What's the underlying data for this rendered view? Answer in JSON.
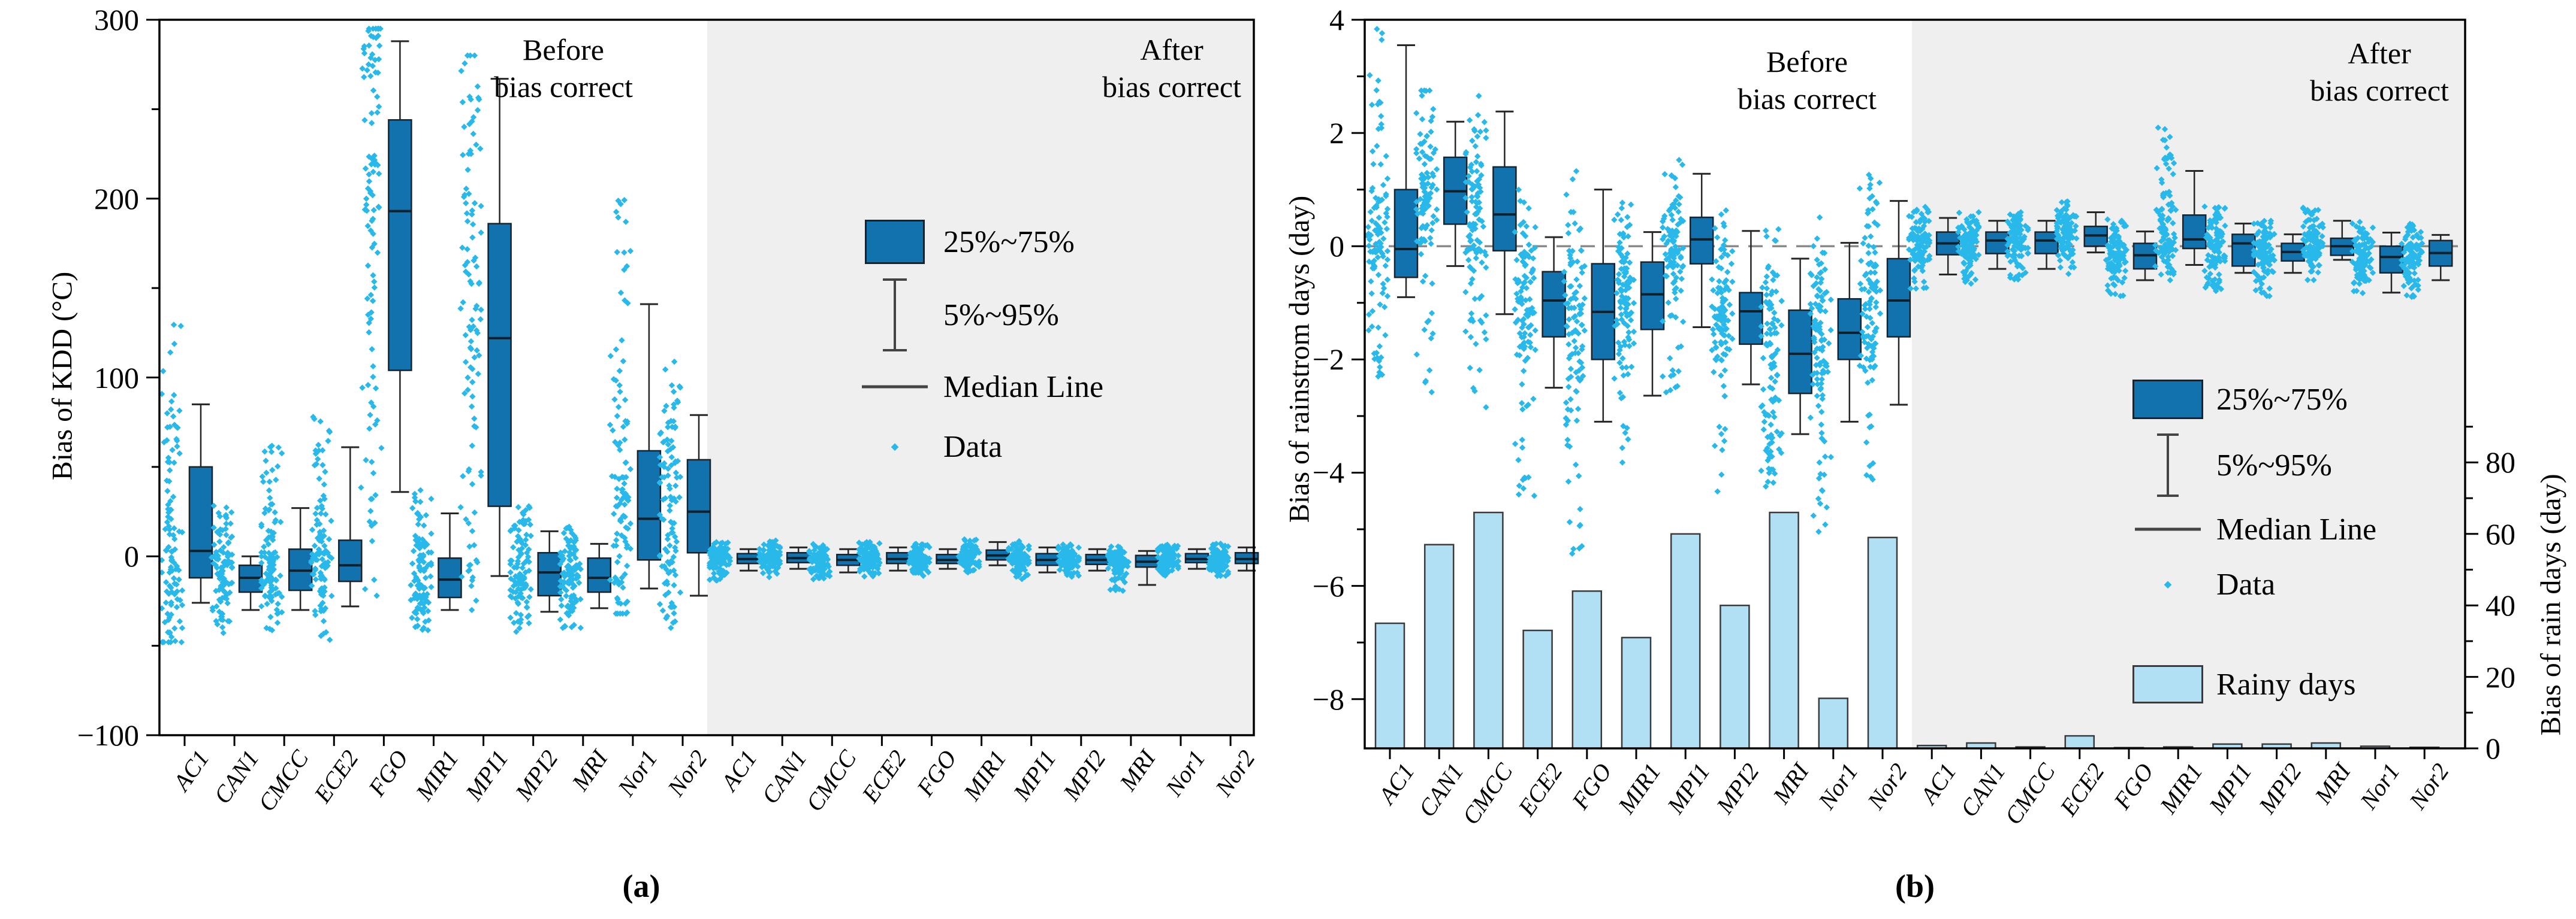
{
  "figure": {
    "caption_a": "(a)",
    "caption_b": "(b)",
    "colors": {
      "box_fill": "#1272ad",
      "box_edge": "#16242f",
      "median": "#10202b",
      "whisker": "#262626",
      "scatter": "#29b8ea",
      "bar_fill": "#b1e0f4",
      "bar_edge": "#3a3a3a",
      "shaded_region": "#efefef",
      "zero_dash": "#8a8a8a",
      "axis": "#000000"
    }
  },
  "chart_data": [
    {
      "panel": "a",
      "type": "box-scatter",
      "y_left_label": "Bias of KDD (°C)",
      "ylim": [
        -100,
        300
      ],
      "yticks": [
        {
          "v": 300,
          "label": "300"
        },
        {
          "v": 200,
          "label": "200"
        },
        {
          "v": 100,
          "label": "100"
        },
        {
          "v": 0,
          "label": "0"
        },
        {
          "v": -100,
          "label": "−100"
        }
      ],
      "yticks_minor": [
        250,
        150,
        50,
        -50
      ],
      "categories": [
        "AC1",
        "CAN1",
        "CMCC",
        "ECE2",
        "FGO",
        "MIR1",
        "MPI1",
        "MPI2",
        "MRI",
        "Nor1",
        "Nor2"
      ],
      "group_before": {
        "line1": "Before",
        "line2": "bias correct"
      },
      "group_after": {
        "line1": "After",
        "line2": "bias correct"
      },
      "legend": [
        {
          "swatch": "box",
          "label": "25%~75%"
        },
        {
          "swatch": "whisker",
          "label": "5%~95%"
        },
        {
          "swatch": "line",
          "label": "Median Line"
        },
        {
          "swatch": "dot",
          "label": "Data"
        }
      ],
      "stats_note": "arrays are [whisker5, q25, median, q75, whisker95, scatter_min, scatter_max] in °C",
      "series": {
        "before": [
          [
            -26,
            -12,
            3,
            50,
            85,
            -48,
            135
          ],
          [
            -30,
            -20,
            -12,
            -5,
            0,
            -45,
            30
          ],
          [
            -30,
            -19,
            -8,
            4,
            27,
            -45,
            62
          ],
          [
            -28,
            -14,
            -5,
            9,
            61,
            -50,
            78
          ],
          [
            36,
            104,
            193,
            244,
            288,
            -22,
            295
          ],
          [
            -30,
            -23,
            -13,
            -1,
            24,
            -42,
            40
          ],
          [
            -11,
            28,
            122,
            186,
            267,
            -30,
            280
          ],
          [
            -31,
            -22,
            -9,
            2,
            14,
            -45,
            28
          ],
          [
            -29,
            -20,
            -12,
            -1,
            7,
            -40,
            18
          ],
          [
            -18,
            -2,
            21,
            59,
            141,
            -32,
            205
          ],
          [
            -22,
            2,
            25,
            54,
            79,
            -40,
            112
          ]
        ],
        "after": [
          [
            -8,
            -4,
            -1.5,
            1.5,
            4,
            -14,
            8
          ],
          [
            -7,
            -3.5,
            -1,
            2,
            5,
            -12,
            9
          ],
          [
            -9,
            -5,
            -2,
            1,
            4,
            -13,
            7
          ],
          [
            -8,
            -4,
            -1.5,
            2,
            5,
            -12,
            8
          ],
          [
            -7,
            -4,
            -2,
            1,
            4,
            -11,
            7
          ],
          [
            -5,
            -2,
            0.5,
            3.5,
            8,
            -10,
            12
          ],
          [
            -9,
            -5,
            -2,
            1.5,
            5,
            -14,
            9
          ],
          [
            -8,
            -4.5,
            -2,
            1,
            4,
            -12,
            7
          ],
          [
            -16,
            -6,
            -3,
            0.5,
            3,
            -20,
            6
          ],
          [
            -7,
            -3.5,
            -1.5,
            1.5,
            4,
            -11,
            7
          ],
          [
            -8,
            -4,
            -1.5,
            2,
            5,
            -12,
            8
          ]
        ]
      }
    },
    {
      "panel": "b",
      "type": "box-scatter-bar",
      "y_left_label": "Bias of rainstrom days (day)",
      "y_right_label": "Bias of rain days (day)",
      "ylim": [
        -8.87,
        4
      ],
      "yticks": [
        {
          "v": 4,
          "label": "4"
        },
        {
          "v": 2,
          "label": "2"
        },
        {
          "v": 0,
          "label": "0"
        },
        {
          "v": -2,
          "label": "−2"
        },
        {
          "v": -4,
          "label": "−4"
        },
        {
          "v": -6,
          "label": "−6"
        },
        {
          "v": -8,
          "label": "−8"
        }
      ],
      "yticks_minor": [
        3,
        1,
        -1,
        -3,
        -5,
        -7
      ],
      "y2lim": [
        0,
        102
      ],
      "y2ticks": [
        {
          "v": 80,
          "label": "80"
        },
        {
          "v": 60,
          "label": "60"
        },
        {
          "v": 40,
          "label": "40"
        },
        {
          "v": 20,
          "label": "20"
        },
        {
          "v": 0,
          "label": "0"
        }
      ],
      "y2ticks_minor": [
        90,
        70,
        50,
        30,
        10
      ],
      "zero_line": true,
      "categories": [
        "AC1",
        "CAN1",
        "CMCC",
        "ECE2",
        "FGO",
        "MIR1",
        "MPI1",
        "MPI2",
        "MRI",
        "Nor1",
        "Nor2"
      ],
      "group_before": {
        "line1": "Before",
        "line2": "bias correct"
      },
      "group_after": {
        "line1": "After",
        "line2": "bias correct"
      },
      "legend": [
        {
          "swatch": "box",
          "label": "25%~75%"
        },
        {
          "swatch": "whisker",
          "label": "5%~95%"
        },
        {
          "swatch": "line",
          "label": "Median Line"
        },
        {
          "swatch": "dot",
          "label": "Data"
        },
        {
          "swatch": "rainy",
          "label": "Rainy days"
        }
      ],
      "stats_note": "arrays are [whisker5, q25, median, q75, whisker95, scatter_min, scatter_max] in days",
      "series": {
        "before": [
          [
            -0.9,
            -0.55,
            -0.05,
            1.0,
            3.55,
            -2.3,
            3.9
          ],
          [
            -0.35,
            0.39,
            0.97,
            1.57,
            2.2,
            -2.6,
            2.75
          ],
          [
            -1.2,
            -0.08,
            0.56,
            1.4,
            2.38,
            -3.0,
            2.7
          ],
          [
            -2.5,
            -1.6,
            -0.96,
            -0.45,
            0.16,
            -4.6,
            1.0
          ],
          [
            -3.1,
            -2.0,
            -1.16,
            -0.31,
            1.0,
            -5.9,
            1.5
          ],
          [
            -2.64,
            -1.47,
            -0.85,
            -0.28,
            0.25,
            -3.9,
            0.9
          ],
          [
            -1.43,
            -0.31,
            0.12,
            0.51,
            1.28,
            -2.6,
            1.7
          ],
          [
            -2.44,
            -1.73,
            -1.15,
            -0.82,
            0.27,
            -4.5,
            0.9
          ],
          [
            -3.32,
            -2.6,
            -1.9,
            -1.13,
            -0.22,
            -4.4,
            0.3
          ],
          [
            -3.1,
            -2.0,
            -1.53,
            -0.93,
            0.06,
            -5.2,
            0.6
          ],
          [
            -2.8,
            -1.6,
            -0.96,
            -0.22,
            0.8,
            -4.2,
            1.3
          ]
        ],
        "after": [
          [
            -0.5,
            -0.15,
            0.05,
            0.25,
            0.5,
            -0.8,
            0.7
          ],
          [
            -0.4,
            -0.13,
            0.1,
            0.25,
            0.45,
            -0.7,
            0.6
          ],
          [
            -0.4,
            -0.13,
            0.1,
            0.25,
            0.45,
            -0.6,
            0.6
          ],
          [
            -0.11,
            0.0,
            0.19,
            0.35,
            0.6,
            -0.5,
            0.8
          ],
          [
            -0.6,
            -0.4,
            -0.16,
            0.05,
            0.26,
            -0.9,
            0.5
          ],
          [
            -0.33,
            -0.04,
            0.12,
            0.55,
            1.33,
            -0.6,
            2.1
          ],
          [
            -0.47,
            -0.35,
            0.05,
            0.21,
            0.4,
            -0.8,
            0.7
          ],
          [
            -0.47,
            -0.26,
            -0.1,
            0.05,
            0.21,
            -0.95,
            0.5
          ],
          [
            -0.24,
            -0.16,
            0.0,
            0.14,
            0.45,
            -0.6,
            0.7
          ],
          [
            -0.82,
            -0.47,
            -0.19,
            0.0,
            0.24,
            -1.0,
            0.45
          ],
          [
            -0.6,
            -0.35,
            -0.12,
            0.1,
            0.2,
            -0.9,
            0.4
          ]
        ]
      },
      "bars": {
        "name": "Rainy days",
        "values_before": [
          35,
          57,
          66,
          33,
          44,
          31,
          60,
          40,
          66,
          14,
          59
        ],
        "values_after": [
          0.8,
          1.5,
          0.4,
          3.5,
          0.2,
          0.4,
          1.2,
          1.2,
          1.5,
          0.6,
          0.3
        ]
      }
    }
  ]
}
